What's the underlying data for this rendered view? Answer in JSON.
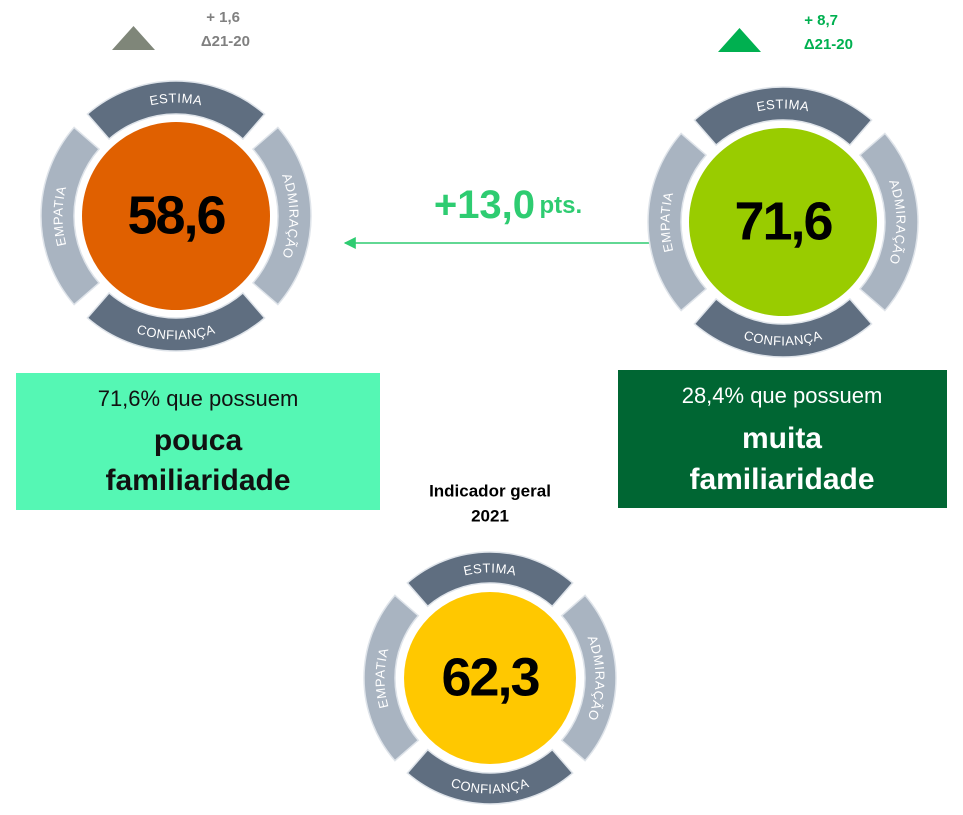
{
  "gauges": [
    {
      "score": "58,6",
      "segments": {
        "top": "ESTIMA",
        "right": "ADMIRAÇÃO",
        "bottom": "CONFIANÇA",
        "left": "EMPATIA"
      },
      "delta": {
        "value": "+ 1,6",
        "label": "Δ21-20"
      },
      "group": {
        "share": "71,6% que possuem",
        "level": "pouca",
        "noun": "familiaridade"
      }
    },
    {
      "score": "71,6",
      "segments": {
        "top": "ESTIMA",
        "right": "ADMIRAÇÃO",
        "bottom": "CONFIANÇA",
        "left": "EMPATIA"
      },
      "delta": {
        "value": "+ 8,7",
        "label": "Δ21-20"
      },
      "group": {
        "share": "28,4% que possuem",
        "level": "muita",
        "noun": "familiaridade"
      }
    },
    {
      "score": "62,3",
      "segments": {
        "top": "ESTIMA",
        "right": "ADMIRAÇÃO",
        "bottom": "CONFIANÇA",
        "left": "EMPATIA"
      },
      "caption": {
        "title": "Indicador geral",
        "year": "2021"
      }
    }
  ],
  "difference": {
    "value": "+13,0",
    "unit": "pts."
  }
}
